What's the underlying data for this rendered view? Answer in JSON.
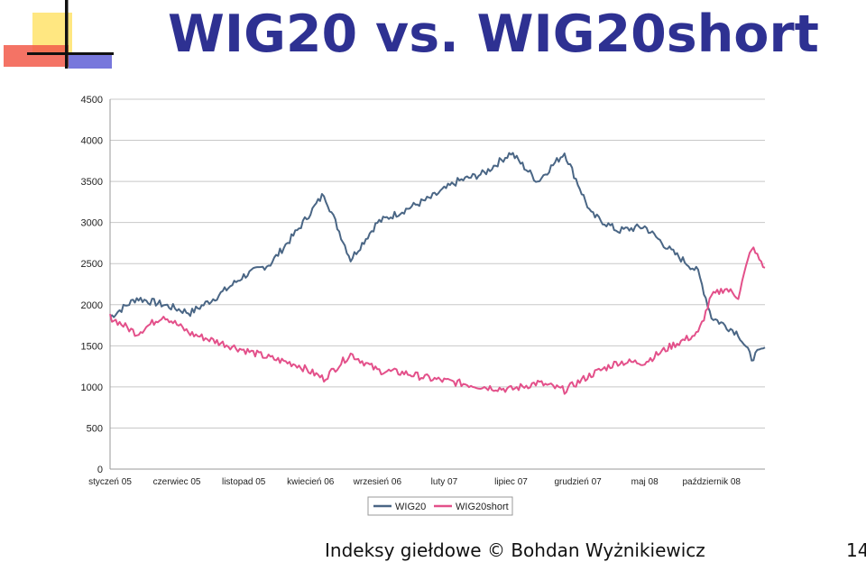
{
  "slide": {
    "title": "WIG20 vs. WIG20short",
    "footer": "Indeksy giełdowe © Bohdan Wyżnikiewicz",
    "page_number": "14"
  },
  "colors": {
    "title": "#2e3192",
    "wig20": "#4a6685",
    "wig20short": "#e3508a",
    "gridline": "#c8c8c8"
  },
  "chart_data": {
    "type": "line",
    "title": "",
    "xlabel": "",
    "ylabel": "",
    "ylim": [
      0,
      4500
    ],
    "yticks": [
      0,
      500,
      1000,
      1500,
      2000,
      2500,
      3000,
      3500,
      4000,
      4500
    ],
    "xtick_labels": [
      "styczeń 05",
      "czerwiec 05",
      "listopad 05",
      "kwiecień 06",
      "wrzesień 06",
      "luty 07",
      "lipiec 07",
      "grudzień 07",
      "maj 08",
      "październik 08"
    ],
    "x_months": [
      "2005-01",
      "2005-03",
      "2005-05",
      "2005-07",
      "2005-09",
      "2005-11",
      "2006-01",
      "2006-03",
      "2006-05",
      "2006-07",
      "2006-09",
      "2006-11",
      "2007-01",
      "2007-03",
      "2007-05",
      "2007-07",
      "2007-09",
      "2007-11",
      "2008-01",
      "2008-03",
      "2008-05",
      "2008-07",
      "2008-09",
      "2008-10",
      "2008-11",
      "2008-12",
      "2009-01",
      "2009-02"
    ],
    "grid": true,
    "legend_position": "bottom",
    "series": [
      {
        "name": "WIG20",
        "values": [
          1850,
          2080,
          2000,
          1900,
          2100,
          2350,
          2500,
          2900,
          3350,
          2550,
          3000,
          3150,
          3300,
          3500,
          3600,
          3850,
          3500,
          3850,
          3100,
          2900,
          2950,
          2650,
          2400,
          1850,
          1750,
          1650,
          1350,
          1480
        ]
      },
      {
        "name": "WIG20short",
        "values": [
          1850,
          1650,
          1870,
          1650,
          1550,
          1450,
          1350,
          1270,
          1100,
          1400,
          1200,
          1170,
          1100,
          1050,
          1000,
          970,
          1050,
          960,
          1150,
          1300,
          1300,
          1500,
          1650,
          2100,
          2200,
          2100,
          2700,
          2450
        ]
      }
    ]
  }
}
